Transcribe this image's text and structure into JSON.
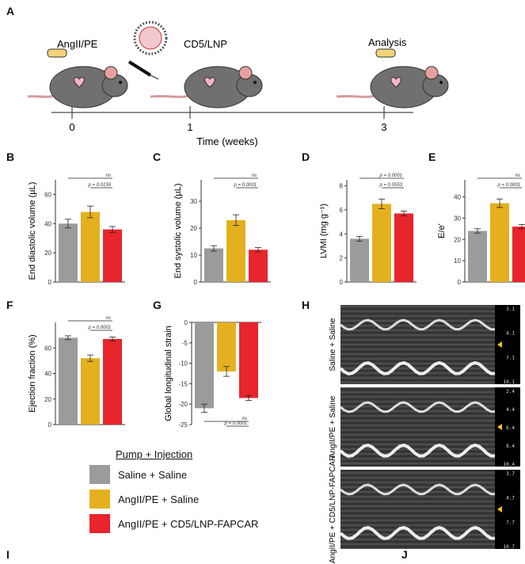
{
  "panel_letters": {
    "A": "A",
    "B": "B",
    "C": "C",
    "D": "D",
    "E": "E",
    "F": "F",
    "G": "G",
    "H": "H",
    "I": "I",
    "J": "J"
  },
  "timeline": {
    "labels": {
      "pump": "AngII/PE",
      "injection": "CD5/LNP",
      "analysis": "Analysis"
    },
    "ticks": [
      "0",
      "1",
      "3"
    ],
    "xlabel": "Time (weeks)"
  },
  "colors": {
    "saline": "#9b9b9b",
    "angii": "#e4b01f",
    "fapcar": "#e8242c"
  },
  "legend": {
    "title": "Pump + Injection",
    "items": [
      "Saline + Saline",
      "AngII/PE + Saline",
      "AngII/PE + CD5/LNP-FAPCAR"
    ]
  },
  "chart_data": [
    {
      "id": "B",
      "type": "bar",
      "categories": [
        "Saline + Saline",
        "AngII/PE + Saline",
        "AngII/PE + CD5/LNP-FAPCAR"
      ],
      "values": [
        40,
        48,
        36
      ],
      "errors": [
        3,
        4,
        2
      ],
      "ylabel": "End diastolic volume (µL)",
      "ylim": [
        0,
        70
      ],
      "yticks": [
        "0",
        "20",
        "40",
        "60"
      ],
      "annotations": [
        {
          "text": "ns",
          "from": 0,
          "to": 2
        },
        {
          "text": "p = 0.0159",
          "from": 1,
          "to": 2
        }
      ]
    },
    {
      "id": "C",
      "type": "bar",
      "categories": [
        "Saline + Saline",
        "AngII/PE + Saline",
        "AngII/PE + CD5/LNP-FAPCAR"
      ],
      "values": [
        12.5,
        23,
        12
      ],
      "errors": [
        1,
        2,
        0.8
      ],
      "ylabel": "End systolic volume (µL)",
      "ylim": [
        0,
        38
      ],
      "yticks": [
        "0",
        "10",
        "20",
        "30"
      ],
      "annotations": [
        {
          "text": "ns",
          "from": 0,
          "to": 2
        },
        {
          "text": "p = 0.0001",
          "from": 1,
          "to": 2
        }
      ]
    },
    {
      "id": "D",
      "type": "bar",
      "categories": [
        "Saline + Saline",
        "AngII/PE + Saline",
        "AngII/PE + CD5/LNP-FAPCAR"
      ],
      "values": [
        3.6,
        6.5,
        5.7
      ],
      "errors": [
        0.2,
        0.4,
        0.2
      ],
      "ylabel": "LVMI (mg g⁻¹)",
      "ylim": [
        0,
        8.5
      ],
      "yticks": [
        "0",
        "2",
        "4",
        "6",
        "8"
      ],
      "annotations": [
        {
          "text": "p = 0.0001",
          "from": 0,
          "to": 2
        },
        {
          "text": "p = 0.0553",
          "from": 1,
          "to": 2
        }
      ]
    },
    {
      "id": "E",
      "type": "bar",
      "categories": [
        "Saline + Saline",
        "AngII/PE + Saline",
        "AngII/PE + CD5/LNP-FAPCAR"
      ],
      "values": [
        24,
        37,
        26
      ],
      "errors": [
        1,
        2,
        1
      ],
      "ylabel": "E/e'",
      "ylim": [
        0,
        48
      ],
      "yticks": [
        "0",
        "10",
        "20",
        "30",
        "40"
      ],
      "annotations": [
        {
          "text": "ns",
          "from": 0,
          "to": 2
        },
        {
          "text": "p = 0.0001",
          "from": 1,
          "to": 2
        }
      ]
    },
    {
      "id": "F",
      "type": "bar",
      "categories": [
        "Saline + Saline",
        "AngII/PE + Saline",
        "AngII/PE + CD5/LNP-FAPCAR"
      ],
      "values": [
        68,
        52,
        67
      ],
      "errors": [
        1.5,
        2.5,
        1.5
      ],
      "ylabel": "Ejection fraction (%)",
      "ylim": [
        0,
        80
      ],
      "yticks": [
        "0",
        "20",
        "40",
        "60"
      ],
      "annotations": [
        {
          "text": "ns",
          "from": 0,
          "to": 2
        },
        {
          "text": "p = 0.0001",
          "from": 1,
          "to": 2
        }
      ]
    },
    {
      "id": "G",
      "type": "bar",
      "categories": [
        "Saline + Saline",
        "AngII/PE + Saline",
        "AngII/PE + CD5/LNP-FAPCAR"
      ],
      "values": [
        -21,
        -12,
        -18.5
      ],
      "errors": [
        1,
        1.2,
        0.6
      ],
      "ylabel": "Global longitudinal strain",
      "ylim": [
        -25,
        0
      ],
      "yticks": [
        "0",
        "-5",
        "-10",
        "-15",
        "-20",
        "-25"
      ],
      "annotations": [
        {
          "text": "ns",
          "from": 0,
          "to": 2
        },
        {
          "text": "p = 0.0001",
          "from": 1,
          "to": 2
        }
      ]
    }
  ],
  "echo": [
    {
      "label": "Saline + Saline",
      "ticks": [
        "3.1",
        "4.1",
        "7.1",
        "10.1"
      ]
    },
    {
      "label": "AngII/PE + Saline",
      "ticks": [
        "2.4",
        "4.4",
        "6.4",
        "8.4",
        "10.4"
      ]
    },
    {
      "label": "AngII/PE + CD5/LNP-FAPCAR",
      "ticks": [
        "3.7",
        "4.7",
        "7.7",
        "10.7"
      ]
    }
  ]
}
